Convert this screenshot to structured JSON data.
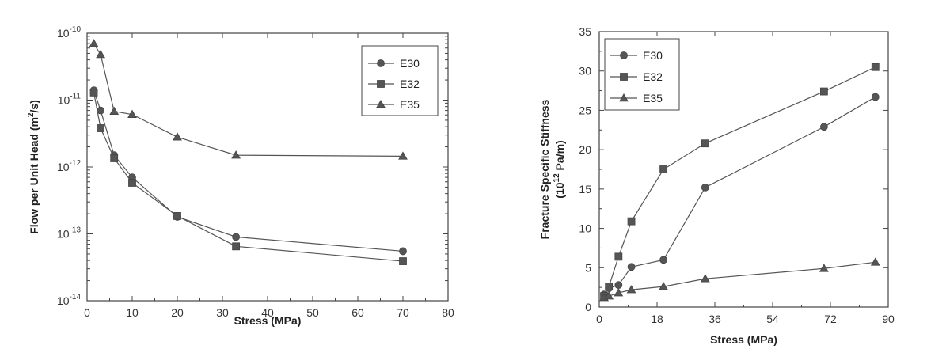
{
  "chart_data": [
    {
      "type": "scatter",
      "xlabel": "Stress  (MPa)",
      "ylabel": "Flow per Unit Head  (m",
      "ylabel_sup": "2",
      "ylabel_tail": "/s)",
      "xlim": [
        0,
        80
      ],
      "ylim": [
        1e-14,
        1e-10
      ],
      "yscale": "log",
      "xticks": [
        "0",
        "10",
        "20",
        "30",
        "40",
        "50",
        "60",
        "70",
        "80"
      ],
      "yticks": [
        {
          "base": "10",
          "exp": "-14"
        },
        {
          "base": "10",
          "exp": "-13"
        },
        {
          "base": "10",
          "exp": "-12"
        },
        {
          "base": "10",
          "exp": "-11"
        },
        {
          "base": "10",
          "exp": "-10"
        }
      ],
      "legend_position": "top-right",
      "series": [
        {
          "name": "E30",
          "marker": "circle",
          "x": [
            1.5,
            3,
            6,
            10,
            20,
            33,
            70
          ],
          "y": [
            1.4e-11,
            7e-12,
            1.5e-12,
            7e-13,
            1.8e-13,
            9e-14,
            5.5e-14
          ]
        },
        {
          "name": "E32",
          "marker": "square",
          "x": [
            1.5,
            3,
            6,
            10,
            20,
            33,
            70
          ],
          "y": [
            1.3e-11,
            3.8e-12,
            1.35e-12,
            5.8e-13,
            1.85e-13,
            6.5e-14,
            3.9e-14
          ]
        },
        {
          "name": "E35",
          "marker": "triangle",
          "x": [
            1.5,
            3,
            6,
            10,
            20,
            33,
            70
          ],
          "y": [
            7e-11,
            4.8e-11,
            6.8e-12,
            6.1e-12,
            2.8e-12,
            1.5e-12,
            1.45e-12
          ]
        }
      ]
    },
    {
      "type": "scatter",
      "xlabel": "Stress  (MPa)",
      "ylabel_line1": "Fracture Specific Stiffness",
      "ylabel_line2_pre": "(10",
      "ylabel_line2_sup": "12",
      "ylabel_line2_post": " Pa/m)",
      "xlim": [
        0,
        90
      ],
      "ylim": [
        0,
        35
      ],
      "xticks": [
        "0",
        "18",
        "36",
        "54",
        "72",
        "90"
      ],
      "yticks": [
        "0",
        "5",
        "10",
        "15",
        "20",
        "25",
        "30",
        "35"
      ],
      "legend_position": "top-left",
      "series": [
        {
          "name": "E30",
          "marker": "circle",
          "x": [
            1.5,
            3,
            6,
            10,
            20,
            33,
            70,
            86
          ],
          "y": [
            1.6,
            2.4,
            2.8,
            5.1,
            6.0,
            15.2,
            22.9,
            26.7
          ]
        },
        {
          "name": "E32",
          "marker": "square",
          "x": [
            1.5,
            3,
            6,
            10,
            20,
            33,
            70,
            86
          ],
          "y": [
            1.4,
            2.6,
            6.4,
            10.9,
            17.5,
            20.8,
            27.4,
            30.5
          ]
        },
        {
          "name": "E35",
          "marker": "triangle",
          "x": [
            1.5,
            3,
            6,
            10,
            20,
            33,
            70,
            86
          ],
          "y": [
            1.2,
            1.4,
            1.8,
            2.2,
            2.6,
            3.6,
            4.9,
            5.7
          ]
        }
      ]
    }
  ]
}
